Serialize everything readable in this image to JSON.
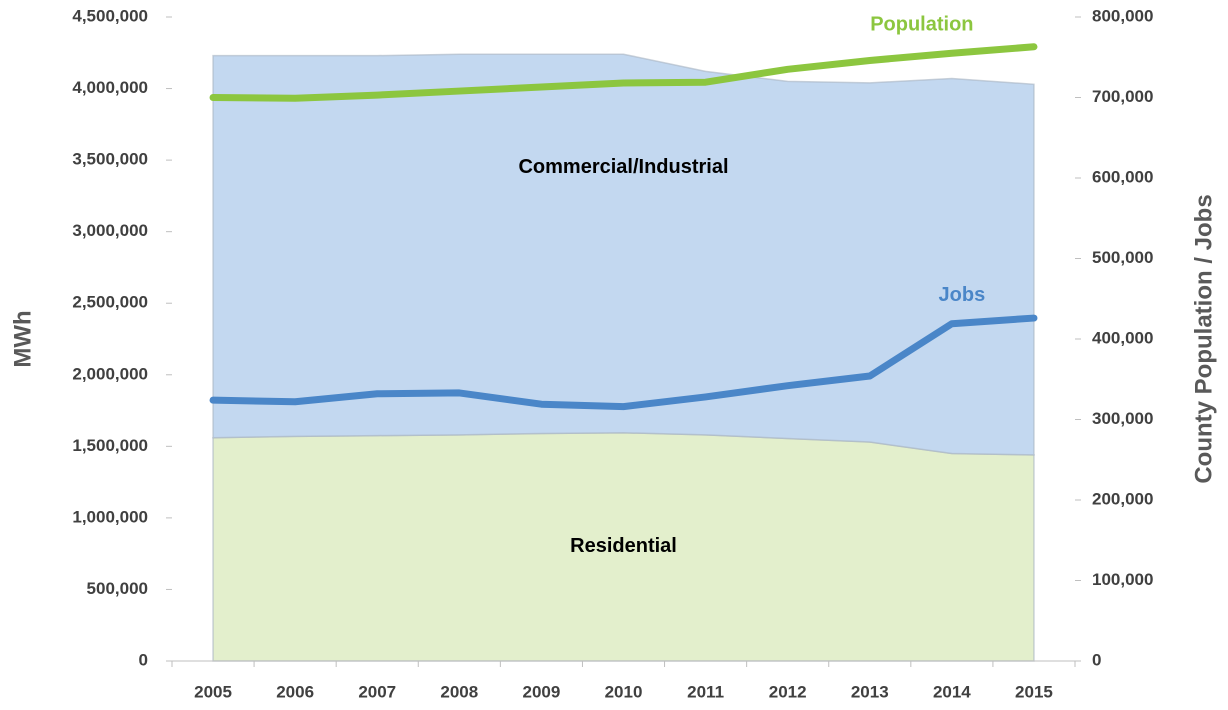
{
  "chart_data": {
    "type": "stacked-area-line",
    "y_label": "MWh",
    "y2_label": "County Population / Jobs",
    "categories": [
      "2005",
      "2006",
      "2007",
      "2008",
      "2009",
      "2010",
      "2011",
      "2012",
      "2013",
      "2014",
      "2015"
    ],
    "series": [
      {
        "name": "Residential",
        "color": "#e3efcc",
        "kind": "area",
        "values": [
          1560000,
          1570000,
          1575000,
          1580000,
          1590000,
          1595000,
          1580000,
          1555000,
          1530000,
          1450000,
          1440000
        ]
      },
      {
        "name": "Commercial/Industrial",
        "color": "#c3d8f0",
        "kind": "area",
        "values": [
          2670000,
          2660000,
          2655000,
          2660000,
          2650000,
          2645000,
          2540000,
          2495000,
          2510000,
          2620000,
          2590000
        ]
      },
      {
        "name": "Population",
        "color": "#8cc63f",
        "kind": "line",
        "axis": "y2",
        "values": [
          700000,
          699000,
          703000,
          708000,
          713000,
          718000,
          719000,
          735000,
          746000,
          755000,
          763000
        ]
      },
      {
        "name": "Jobs",
        "color": "#4a86c8",
        "kind": "line",
        "axis": "y2",
        "values": [
          324000,
          322000,
          332000,
          333000,
          319000,
          316000,
          328000,
          342000,
          354000,
          419000,
          426000
        ]
      }
    ],
    "ylim": [
      0,
      4500000
    ],
    "yticks": [
      0,
      {
        "value": 500000,
        "label": "500,000"
      },
      {
        "value": 1000000,
        "label": "1,000,000"
      },
      {
        "value": 1500000,
        "label": "1,500,000"
      },
      {
        "value": 2000000,
        "label": "2,000,000"
      },
      {
        "value": 2500000,
        "label": "2,500,000"
      },
      {
        "value": 3000000,
        "label": "3,000,000"
      },
      {
        "value": 3500000,
        "label": "3,500,000"
      },
      {
        "value": 4000000,
        "label": "4,000,000"
      },
      {
        "value": 4500000,
        "label": "4,500,000"
      }
    ],
    "y2lim": [
      0,
      800000
    ],
    "y2ticks": [
      0,
      {
        "value": 100000,
        "label": "100,000"
      },
      {
        "value": 200000,
        "label": "200,000"
      },
      {
        "value": 300000,
        "label": "300,000"
      },
      {
        "value": 400000,
        "label": "400,000"
      },
      {
        "value": 500000,
        "label": "500,000"
      },
      {
        "value": 600000,
        "label": "600,000"
      },
      {
        "value": 700000,
        "label": "700,000"
      },
      {
        "value": 800000,
        "label": "800,000"
      }
    ]
  }
}
